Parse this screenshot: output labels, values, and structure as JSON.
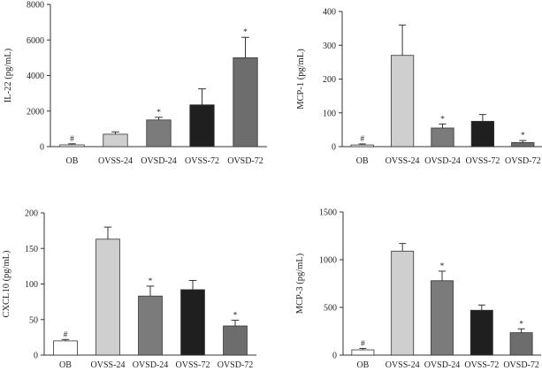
{
  "colors": {
    "OB": "#ffffff",
    "OVSS-24": "#cfcfcf",
    "OVSD-24": "#7b7b7b",
    "OVSS-72": "#1f1f1f",
    "OVSD-72": "#6d6d6d",
    "axis": "#333333"
  },
  "chart_data": [
    {
      "type": "bar",
      "panel": "top-left",
      "ylabel": "IL-22 (pg/mL)",
      "categories": [
        "OB",
        "OVSS-24",
        "OVSD-24",
        "OVSS-72",
        "OVSD-72"
      ],
      "values": [
        100,
        700,
        1500,
        2350,
        5000
      ],
      "errors": [
        60,
        130,
        150,
        900,
        1150
      ],
      "significance": [
        "#",
        "",
        "*",
        "",
        "*"
      ],
      "ylim": [
        0,
        8000
      ],
      "yticks": [
        0,
        2000,
        4000,
        6000,
        8000
      ],
      "ytick_labels": [
        "0",
        "2000",
        "4000",
        "6000",
        "8000"
      ]
    },
    {
      "type": "bar",
      "panel": "top-right",
      "ylabel": "MCP-1 (pg/mL)",
      "categories": [
        "OB",
        "OVSS-24",
        "OVSD-24",
        "OVSS-72",
        "OVSD-72"
      ],
      "values": [
        5,
        270,
        55,
        75,
        12
      ],
      "errors": [
        3,
        90,
        12,
        20,
        6
      ],
      "significance": [
        "#",
        "",
        "*",
        "",
        "*"
      ],
      "ylim": [
        0,
        400
      ],
      "yticks": [
        0,
        100,
        200,
        300,
        400
      ],
      "ytick_labels": [
        "0",
        "100",
        "200",
        "300",
        "400"
      ]
    },
    {
      "type": "bar",
      "panel": "bottom-left",
      "ylabel": "CXCL10 (pg/mL)",
      "categories": [
        "OB",
        "OVSS-24",
        "OVSD-24",
        "OVSS-72",
        "OVSD-72"
      ],
      "values": [
        20,
        163,
        83,
        92,
        41
      ],
      "errors": [
        2,
        17,
        14,
        13,
        8
      ],
      "significance": [
        "#",
        "",
        "*",
        "",
        "*"
      ],
      "ylim": [
        0,
        200
      ],
      "yticks": [
        0,
        50,
        100,
        150,
        200
      ],
      "ytick_labels": [
        "0",
        "50",
        "100",
        "150",
        "200"
      ]
    },
    {
      "type": "bar",
      "panel": "bottom-right",
      "ylabel": "MCP-3 (pg/mL)",
      "categories": [
        "OB",
        "OVSS-24",
        "OVSD-24",
        "OVSS-72",
        "OVSD-72"
      ],
      "values": [
        55,
        1090,
        780,
        470,
        235
      ],
      "errors": [
        15,
        80,
        100,
        55,
        40
      ],
      "significance": [
        "#",
        "",
        "*",
        "",
        "*"
      ],
      "ylim": [
        0,
        1500
      ],
      "yticks": [
        0,
        500,
        1000,
        1500
      ],
      "ytick_labels": [
        "0",
        "500",
        "1000",
        "1500"
      ]
    }
  ]
}
